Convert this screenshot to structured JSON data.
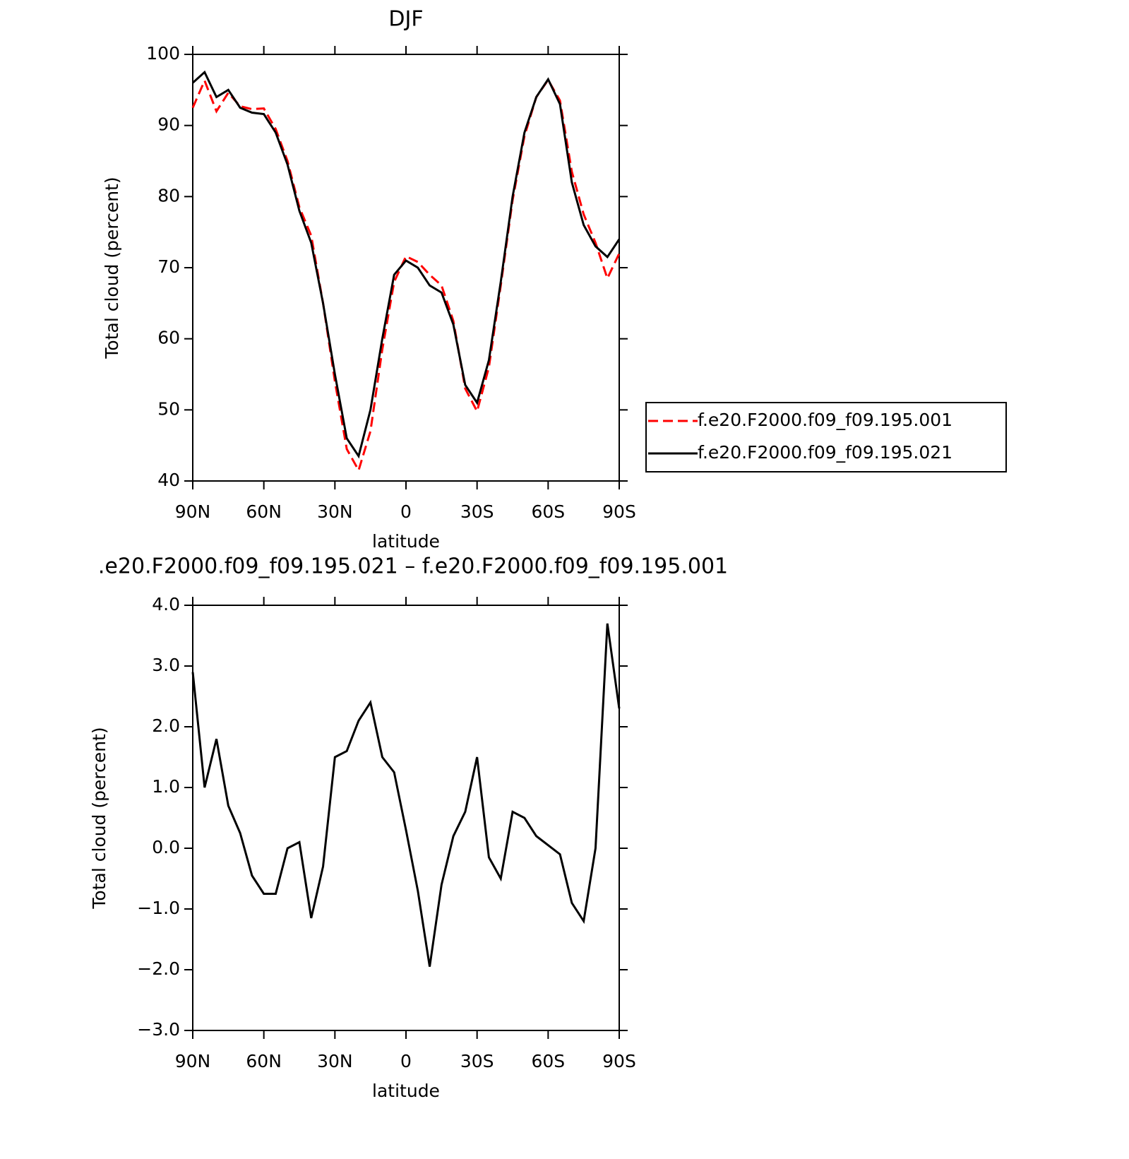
{
  "chart_data": [
    {
      "type": "line",
      "title": "DJF",
      "xlabel": "latitude",
      "ylabel": "Total cloud (percent)",
      "x": [
        90,
        85,
        80,
        75,
        70,
        65,
        60,
        55,
        50,
        45,
        40,
        35,
        30,
        25,
        20,
        15,
        10,
        5,
        0,
        -5,
        -10,
        -15,
        -20,
        -25,
        -30,
        -35,
        -40,
        -45,
        -50,
        -55,
        -60,
        -65,
        -70,
        -75,
        -80,
        -85,
        -90
      ],
      "series": [
        {
          "name": "f.e20.F2000.f09_f09.195.001",
          "color": "#ff0000",
          "dashed": true,
          "values": [
            92.5,
            96.3,
            92,
            94.6,
            92.7,
            92.3,
            92.4,
            89.5,
            85,
            78.5,
            74.5,
            65,
            54,
            44.5,
            41.5,
            47,
            58.5,
            68,
            71.6,
            70.8,
            69,
            67.5,
            62.5,
            53,
            49.8,
            56,
            67.5,
            79.5,
            88.5,
            94,
            96.4,
            93.5,
            83.5,
            77.5,
            73.5,
            68.5,
            72
          ]
        },
        {
          "name": "f.e20.F2000.f09_f09.195.021",
          "color": "#000000",
          "dashed": false,
          "values": [
            96,
            97.5,
            94,
            95,
            92.5,
            91.8,
            91.6,
            89,
            84.5,
            78,
            73.5,
            65,
            55,
            46,
            43.5,
            50,
            60,
            69,
            71,
            70,
            67.5,
            66.5,
            62,
            53.5,
            51,
            57,
            68,
            80,
            89,
            94,
            96.5,
            93,
            82,
            76,
            73,
            71.5,
            74
          ]
        }
      ],
      "xlim": [
        90,
        -90
      ],
      "xticks": [
        {
          "value": 90,
          "label": "90N"
        },
        {
          "value": 60,
          "label": "60N"
        },
        {
          "value": 30,
          "label": "30N"
        },
        0,
        {
          "value": -30,
          "label": "30S"
        },
        {
          "value": -60,
          "label": "60S"
        },
        {
          "value": -90,
          "label": "90S"
        }
      ],
      "ylim": [
        40,
        100
      ],
      "yticks": [
        40,
        50,
        60,
        70,
        80,
        90,
        100
      ],
      "legend": "right"
    },
    {
      "type": "line",
      "title": ".e20.F2000.f09_f09.195.021 – f.e20.F2000.f09_f09.195.001",
      "xlabel": "latitude",
      "ylabel": "Total cloud (percent)",
      "x": [
        90,
        85,
        80,
        75,
        70,
        65,
        60,
        55,
        50,
        45,
        40,
        35,
        30,
        25,
        20,
        15,
        10,
        5,
        0,
        -5,
        -10,
        -15,
        -20,
        -25,
        -30,
        -35,
        -40,
        -45,
        -50,
        -55,
        -60,
        -65,
        -70,
        -75,
        -80,
        -85,
        -90
      ],
      "color": "#000000",
      "values": [
        2.9,
        1.0,
        1.8,
        0.7,
        0.25,
        -0.45,
        -0.75,
        -0.75,
        0.0,
        0.1,
        -1.15,
        -0.3,
        1.5,
        1.6,
        2.1,
        2.4,
        1.5,
        1.25,
        0.3,
        -0.7,
        -1.95,
        -0.6,
        0.2,
        0.6,
        1.5,
        -0.15,
        -0.5,
        0.6,
        0.5,
        0.2,
        0.05,
        -0.1,
        -0.9,
        -1.2,
        0.0,
        3.7,
        2.3
      ],
      "xlim": [
        90,
        -90
      ],
      "xticks": [
        {
          "value": 90,
          "label": "90N"
        },
        {
          "value": 60,
          "label": "60N"
        },
        {
          "value": 30,
          "label": "30N"
        },
        0,
        {
          "value": -30,
          "label": "30S"
        },
        {
          "value": -60,
          "label": "60S"
        },
        {
          "value": -90,
          "label": "90S"
        }
      ],
      "ylim": [
        -3,
        4
      ],
      "yticks": [
        {
          "value": -3,
          "label": "−3.0"
        },
        {
          "value": -2,
          "label": "−2.0"
        },
        {
          "value": -1,
          "label": "−1.0"
        },
        {
          "value": 0,
          "label": "0.0"
        },
        {
          "value": 1,
          "label": "1.0"
        },
        {
          "value": 2,
          "label": "2.0"
        },
        {
          "value": 3,
          "label": "3.0"
        },
        {
          "value": 4,
          "label": "4.0"
        }
      ]
    }
  ]
}
